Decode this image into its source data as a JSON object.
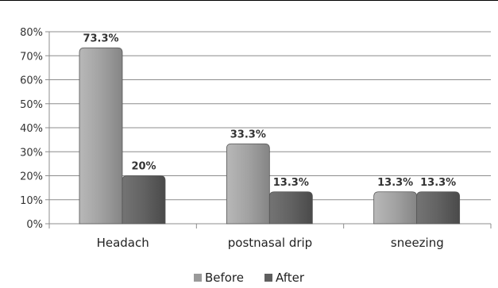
{
  "chart_data": {
    "type": "bar",
    "title": "",
    "xlabel": "",
    "ylabel": "",
    "categories": [
      "Headach",
      "postnasal drip",
      "sneezing"
    ],
    "series": [
      {
        "name": "Before",
        "values": [
          73.3,
          33.3,
          13.3
        ],
        "labels": [
          "73.3%",
          "33.3%",
          "13.3%"
        ],
        "color": "#9a9a9a"
      },
      {
        "name": "After",
        "values": [
          20,
          13.3,
          13.3
        ],
        "labels": [
          "20%",
          "13.3%",
          "13.3%"
        ],
        "color": "#5f5f5f"
      }
    ],
    "ylim": [
      0,
      80
    ],
    "yticks": [
      0,
      10,
      20,
      30,
      40,
      50,
      60,
      70,
      80
    ],
    "ytick_labels": [
      "0%",
      "10%",
      "20%",
      "30%",
      "40%",
      "50%",
      "60%",
      "70%",
      "80%"
    ],
    "grid": true,
    "legend_position": "bottom"
  }
}
